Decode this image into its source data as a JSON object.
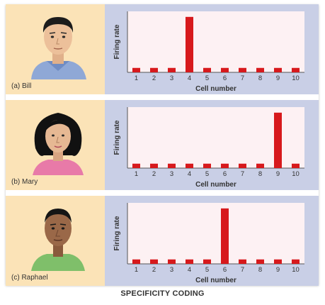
{
  "footer_title": "SPECIFICITY CODING",
  "colors": {
    "bar": "#d7191c",
    "plot_bg": "#fdf1f3",
    "panel_bg": "#c9cfe6",
    "left_bg": "#fbe3b7"
  },
  "chart_data": [
    {
      "type": "bar",
      "person": "(a) Bill",
      "portrait_icon": "bill-portrait",
      "ylabel": "Firing rate",
      "xlabel": "Cell number",
      "categories": [
        "1",
        "2",
        "3",
        "4",
        "5",
        "6",
        "7",
        "8",
        "9",
        "10"
      ],
      "values": [
        0.08,
        0.08,
        0.08,
        1.0,
        0.08,
        0.08,
        0.08,
        0.08,
        0.08,
        0.08
      ],
      "ylim": [
        0,
        1.1
      ]
    },
    {
      "type": "bar",
      "person": "(b) Mary",
      "portrait_icon": "mary-portrait",
      "ylabel": "Firing rate",
      "xlabel": "Cell number",
      "categories": [
        "1",
        "2",
        "3",
        "4",
        "5",
        "6",
        "7",
        "8",
        "9",
        "10"
      ],
      "values": [
        0.08,
        0.08,
        0.08,
        0.08,
        0.08,
        0.08,
        0.08,
        0.08,
        1.0,
        0.08
      ],
      "ylim": [
        0,
        1.1
      ]
    },
    {
      "type": "bar",
      "person": "(c) Raphael",
      "portrait_icon": "raphael-portrait",
      "ylabel": "Firing rate",
      "xlabel": "Cell number",
      "categories": [
        "1",
        "2",
        "3",
        "4",
        "5",
        "6",
        "7",
        "8",
        "9",
        "10"
      ],
      "values": [
        0.08,
        0.08,
        0.08,
        0.08,
        0.08,
        1.0,
        0.08,
        0.08,
        0.08,
        0.08
      ],
      "ylim": [
        0,
        1.1
      ]
    }
  ]
}
